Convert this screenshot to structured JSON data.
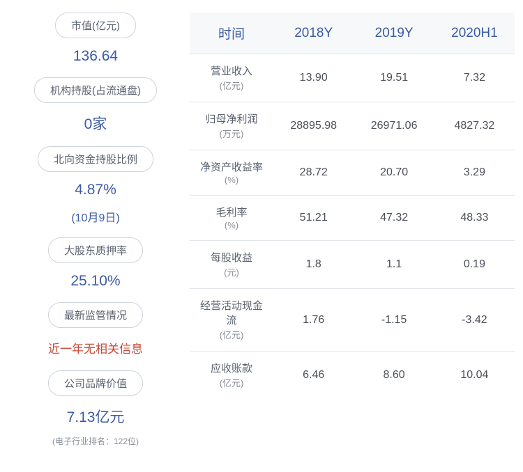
{
  "leftStats": [
    {
      "label": "市值(亿元)",
      "value": "136.64",
      "sub": null,
      "color": "blue",
      "note": null
    },
    {
      "label": "机构持股(占流通盘)",
      "value": "0家",
      "sub": null,
      "color": "blue",
      "note": null
    },
    {
      "label": "北向资金持股比例",
      "value": "4.87%",
      "sub": "(10月9日)",
      "color": "blue",
      "note": null
    },
    {
      "label": "大股东质押率",
      "value": "25.10%",
      "sub": null,
      "color": "blue",
      "note": null
    },
    {
      "label": "最新监管情况",
      "value": "近一年无相关信息",
      "sub": null,
      "color": "red",
      "note": null
    },
    {
      "label": "公司品牌价值",
      "value": "7.13亿元",
      "sub": null,
      "color": "blue",
      "note": "(电子行业排名：122位)"
    }
  ],
  "table": {
    "headers": [
      "时间",
      "2018Y",
      "2019Y",
      "2020H1"
    ],
    "rows": [
      {
        "metric": "营业收入",
        "unit": "(亿元)",
        "v1": "13.90",
        "v2": "19.51",
        "v3": "7.32"
      },
      {
        "metric": "归母净利润",
        "unit": "(万元)",
        "v1": "28895.98",
        "v2": "26971.06",
        "v3": "4827.32"
      },
      {
        "metric": "净资产收益率",
        "unit": "(%)",
        "v1": "28.72",
        "v2": "20.70",
        "v3": "3.29"
      },
      {
        "metric": "毛利率",
        "unit": "(%)",
        "v1": "51.21",
        "v2": "47.32",
        "v3": "48.33"
      },
      {
        "metric": "每股收益",
        "unit": "(元)",
        "v1": "1.8",
        "v2": "1.1",
        "v3": "0.19"
      },
      {
        "metric": "经营活动现金流",
        "unit": "(亿元)",
        "v1": "1.76",
        "v2": "-1.15",
        "v3": "-3.42"
      },
      {
        "metric": "应收账款",
        "unit": "(亿元)",
        "v1": "6.46",
        "v2": "8.60",
        "v3": "10.04"
      }
    ]
  },
  "colors": {
    "primary": "#3b5ba5",
    "red": "#c94a3a",
    "border": "#ccd4dd",
    "textMuted": "#8a8f98",
    "rowBorder": "#e3e6eb",
    "headerBg": "#f6f8fa"
  }
}
